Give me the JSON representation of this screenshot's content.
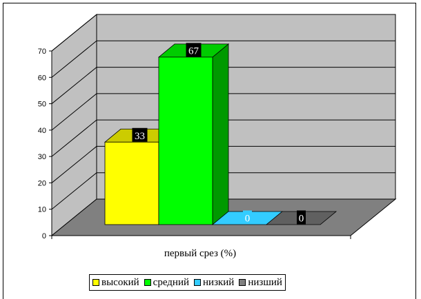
{
  "chart_data": {
    "type": "bar",
    "categories": [
      "высокий",
      "средний",
      "низкий",
      "низший"
    ],
    "values": [
      33,
      67,
      0,
      0
    ],
    "data_labels": [
      "33",
      "67",
      "0",
      "0"
    ],
    "xlabel": "первый срез (%)",
    "ylabel": "",
    "ylim": [
      0,
      70
    ],
    "yticks": [
      "0",
      "10",
      "20",
      "30",
      "40",
      "50",
      "60",
      "70"
    ],
    "grid": true,
    "style": "3d-column",
    "legend_position": "bottom",
    "colors": {
      "series": [
        "#ffff00",
        "#00ff00",
        "#33ccff",
        "#808080"
      ],
      "series_top": [
        "#cccc00",
        "#00cc00",
        "#33ccff",
        "#606060"
      ],
      "series_side": [
        "#999900",
        "#009900",
        "#2299bb",
        "#505050"
      ],
      "label_bg": [
        "#000000",
        "#000000",
        "#33ccff",
        "#000000"
      ],
      "label_fg": [
        "#ffffff",
        "#ffffff",
        "#ffffff",
        "#ffffff"
      ],
      "back_wall": "#c0c0c0",
      "side_wall": "#c0c0c0",
      "floor": "#808080"
    }
  }
}
